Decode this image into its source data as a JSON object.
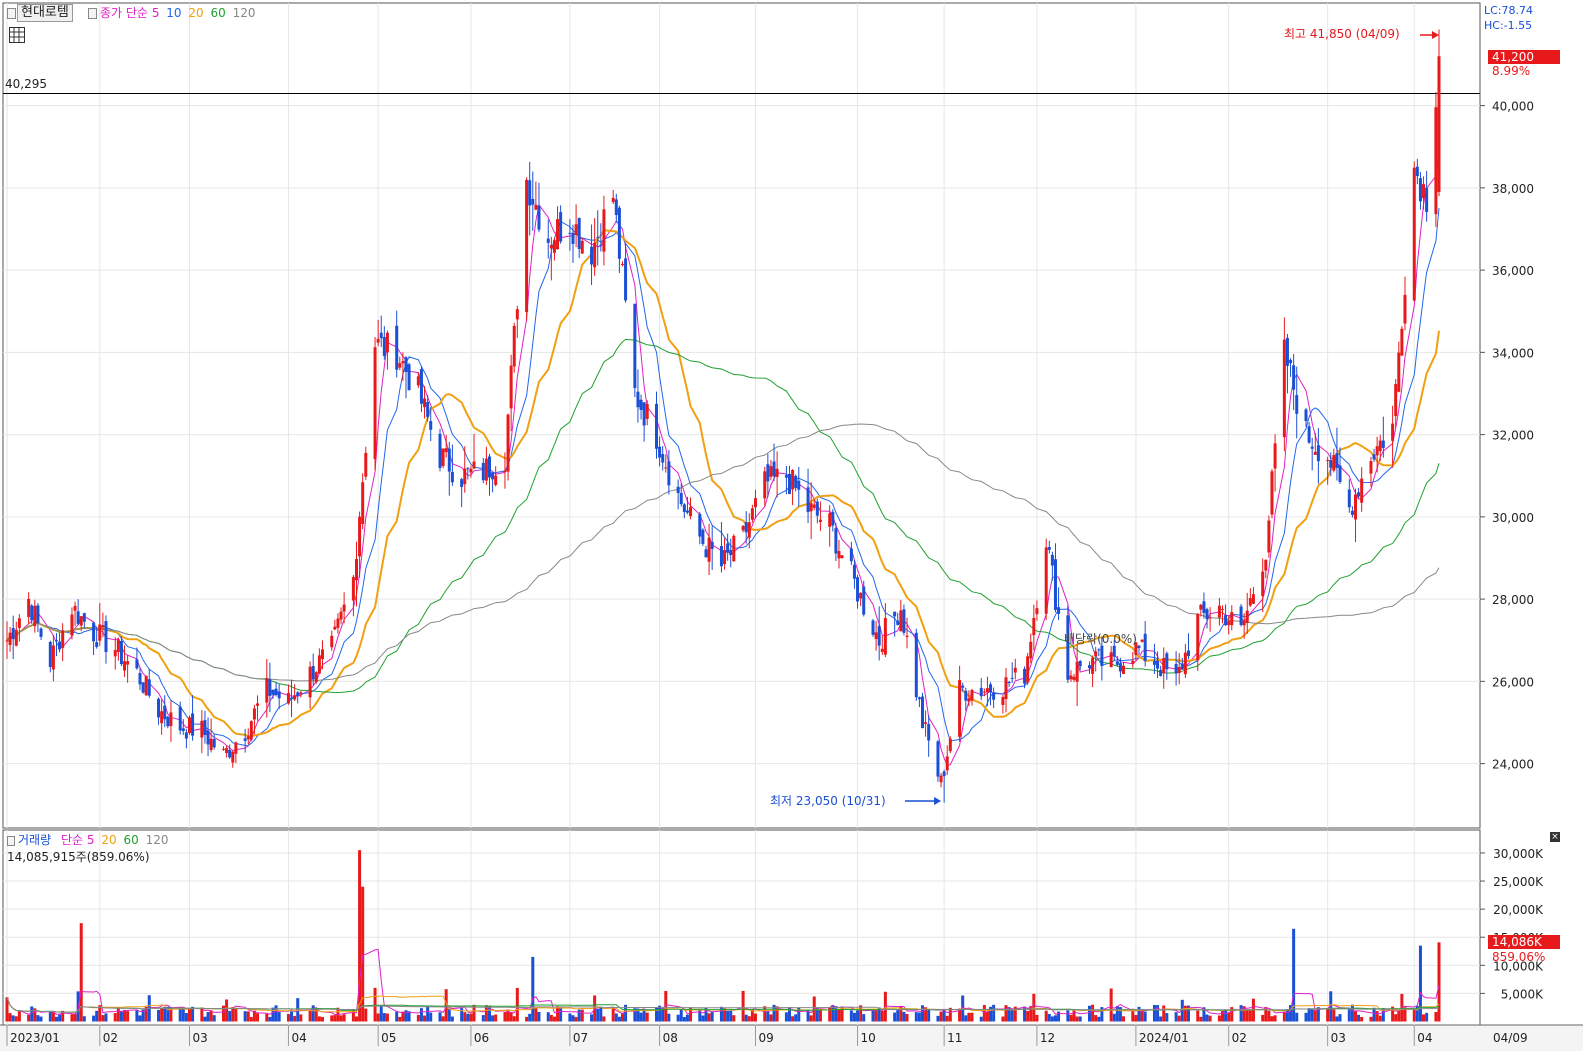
{
  "price_legend": {
    "stock_name": "현대로템",
    "ma_prefix": "종가 단순",
    "ma_periods": [
      "5",
      "10",
      "20",
      "60",
      "120"
    ],
    "ma_colors": [
      "#e020c8",
      "#2266ee",
      "#f0a010",
      "#20a030",
      "#888888"
    ]
  },
  "volume_legend": {
    "title": "거래량",
    "ma_prefix": "단순",
    "ma_periods": [
      "5",
      "20",
      "60",
      "120"
    ],
    "ma_colors": [
      "#e020c8",
      "#f0a010",
      "#20a030",
      "#888888"
    ],
    "current_volume": "14,085,915주(859.06%)"
  },
  "reference_line_label": "40,295",
  "corner": {
    "lc": "LC:78.74",
    "hc": "HC:-1.55"
  },
  "annotations": {
    "high": "최고 41,850 (04/09)",
    "low": "최저 23,050 (10/31)",
    "dividend": "배당락(0.0%)"
  },
  "current": {
    "price": "41,200",
    "price_change": "8.99%",
    "volume": "14,086K",
    "volume_change": "859.06%"
  },
  "colors": {
    "up": "#e8191b",
    "down": "#1a4fd6",
    "reference_line": "#000000"
  },
  "chart_data": [
    {
      "type": "candlestick",
      "title": "",
      "xlabel": "",
      "ylabel": "",
      "ylim": [
        22700,
        42500
      ],
      "y_ticks": [
        "24,000",
        "26,000",
        "28,000",
        "30,000",
        "32,000",
        "34,000",
        "36,000",
        "38,000",
        "40,000"
      ],
      "x_tick_labels": [
        "2023/01",
        "02",
        "03",
        "04",
        "05",
        "06",
        "07",
        "08",
        "09",
        "10",
        "11",
        "12",
        "2024/01",
        "02",
        "03",
        "04",
        "04/09"
      ],
      "close_trend": [
        [
          "2023-01-02",
          27000
        ],
        [
          "2023-01-09",
          28000
        ],
        [
          "2023-01-16",
          26500
        ],
        [
          "2023-01-23",
          27800
        ],
        [
          "2023-01-30",
          27200
        ],
        [
          "2023-02-06",
          26800
        ],
        [
          "2023-02-13",
          26200
        ],
        [
          "2023-02-20",
          25300
        ],
        [
          "2023-02-27",
          24900
        ],
        [
          "2023-03-06",
          24800
        ],
        [
          "2023-03-13",
          24200
        ],
        [
          "2023-03-20",
          24800
        ],
        [
          "2023-03-27",
          25800
        ],
        [
          "2023-04-03",
          25500
        ],
        [
          "2023-04-10",
          26200
        ],
        [
          "2023-04-17",
          26800
        ],
        [
          "2023-04-24",
          28500
        ],
        [
          "2023-05-01",
          34200
        ],
        [
          "2023-05-08",
          34000
        ],
        [
          "2023-05-15",
          33000
        ],
        [
          "2023-05-22",
          31500
        ],
        [
          "2023-05-29",
          31000
        ],
        [
          "2023-06-05",
          31100
        ],
        [
          "2023-06-12",
          31500
        ],
        [
          "2023-06-19",
          38200
        ],
        [
          "2023-06-26",
          36800
        ],
        [
          "2023-07-03",
          37200
        ],
        [
          "2023-07-10",
          36500
        ],
        [
          "2023-07-17",
          37800
        ],
        [
          "2023-07-24",
          33000
        ],
        [
          "2023-07-31",
          32000
        ],
        [
          "2023-08-07",
          30500
        ],
        [
          "2023-08-14",
          29500
        ],
        [
          "2023-08-21",
          28800
        ],
        [
          "2023-08-28",
          29500
        ],
        [
          "2023-09-04",
          30800
        ],
        [
          "2023-09-11",
          31000
        ],
        [
          "2023-09-18",
          30200
        ],
        [
          "2023-09-25",
          29800
        ],
        [
          "2023-10-04",
          28200
        ],
        [
          "2023-10-11",
          27000
        ],
        [
          "2023-10-18",
          27800
        ],
        [
          "2023-10-25",
          25000
        ],
        [
          "2023-10-31",
          23500
        ],
        [
          "2023-11-06",
          25800
        ],
        [
          "2023-11-13",
          25800
        ],
        [
          "2023-11-20",
          25900
        ],
        [
          "2023-11-27",
          26200
        ],
        [
          "2023-12-04",
          29500
        ],
        [
          "2023-12-11",
          26200
        ],
        [
          "2023-12-18",
          26500
        ],
        [
          "2023-12-26",
          26400
        ],
        [
          "2024-01-02",
          26800
        ],
        [
          "2024-01-08",
          26500
        ],
        [
          "2024-01-15",
          26000
        ],
        [
          "2024-01-22",
          27500
        ],
        [
          "2024-01-29",
          27800
        ],
        [
          "2024-02-05",
          27200
        ],
        [
          "2024-02-13",
          29200
        ],
        [
          "2024-02-19",
          34000
        ],
        [
          "2024-02-26",
          32000
        ],
        [
          "2024-03-04",
          31500
        ],
        [
          "2024-03-11",
          30200
        ],
        [
          "2024-03-18",
          31500
        ],
        [
          "2024-03-25",
          32200
        ],
        [
          "2024-04-01",
          38500
        ],
        [
          "2024-04-05",
          37800
        ],
        [
          "2024-04-09",
          41200
        ]
      ],
      "highest": {
        "date": "04/09",
        "value": 41850
      },
      "lowest": {
        "date": "10/31",
        "value": 23050
      },
      "reference_value": 40295
    },
    {
      "type": "bar",
      "title": "",
      "ylabel": "",
      "ylim": [
        0,
        32000
      ],
      "y_ticks": [
        "5,000K",
        "10,000K",
        "15,000K",
        "20,000K",
        "25,000K",
        "30,000K"
      ],
      "volume_spikes_k": [
        [
          "2023-01-26",
          17500
        ],
        [
          "2023-04-26",
          30500
        ],
        [
          "2023-04-27",
          24000
        ],
        [
          "2023-06-21",
          11500
        ],
        [
          "2024-02-22",
          16500
        ],
        [
          "2024-04-03",
          13500
        ],
        [
          "2024-04-09",
          14086
        ]
      ]
    }
  ]
}
